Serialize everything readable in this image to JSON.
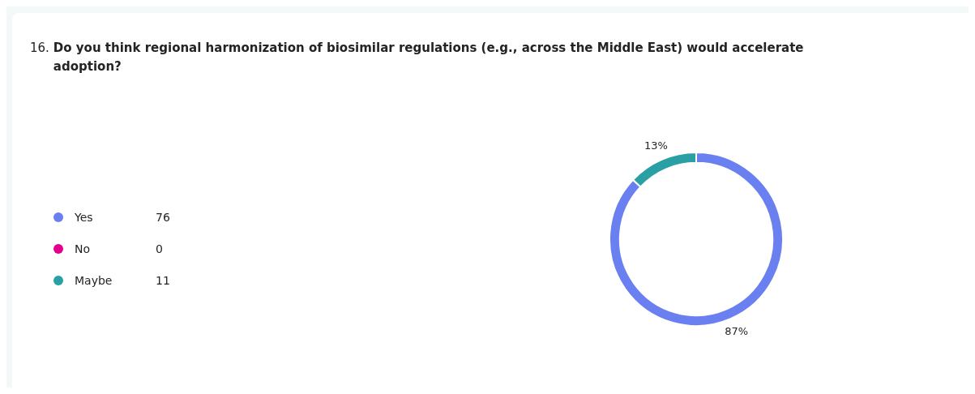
{
  "chart_data": {
    "type": "donut",
    "title": "16. Do you think regional harmonization of biosimilar regulations (e.g., across the Middle East) would accelerate adoption?",
    "categories": [
      "Yes",
      "No",
      "Maybe"
    ],
    "values": [
      87,
      0,
      13
    ],
    "annotations": [
      "76",
      "0",
      "11"
    ],
    "colors": [
      "#6a80f0",
      "#e3008c",
      "#2aa0a4"
    ],
    "value_labels": [
      "87%",
      null,
      "13%"
    ],
    "legend": "left"
  }
}
